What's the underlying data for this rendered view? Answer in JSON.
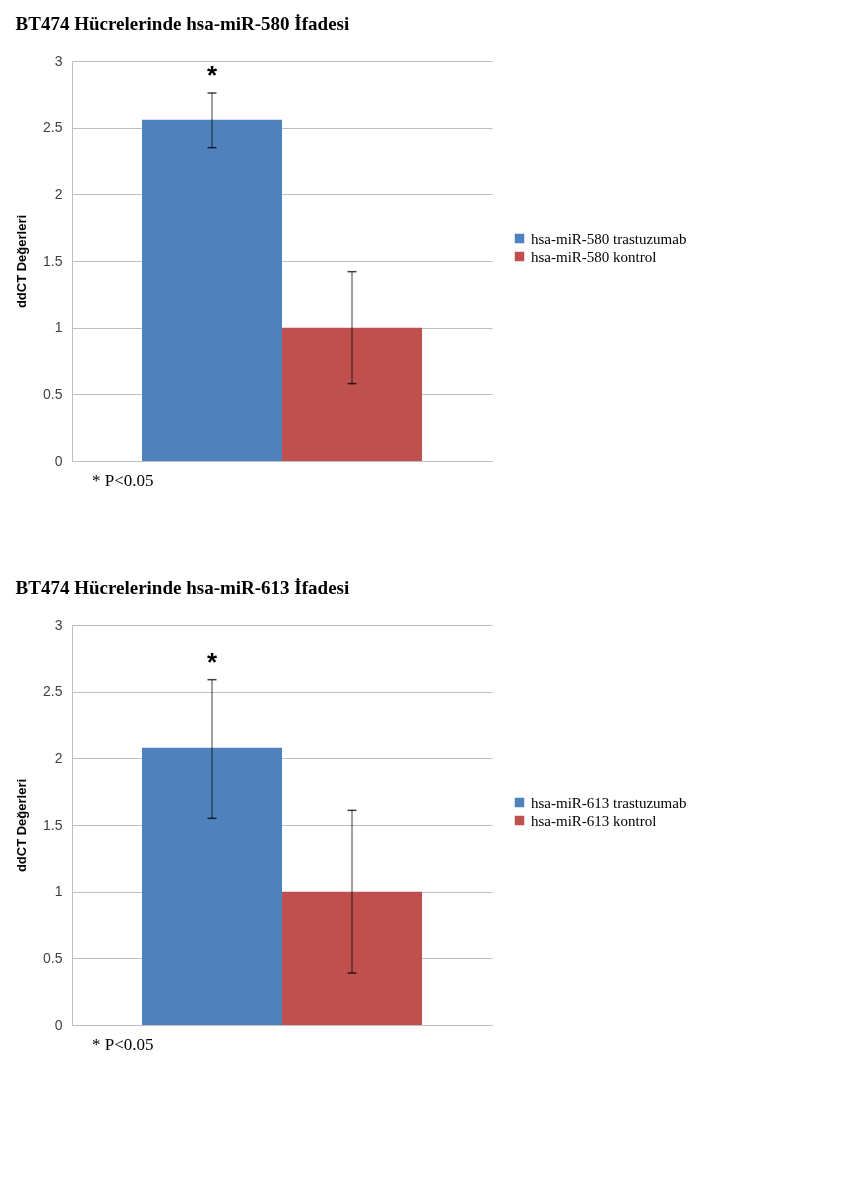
{
  "chart_data": [
    {
      "type": "bar",
      "title": "BT474 Hücrelerinde hsa-miR-580 İfadesi",
      "ylabel": "ddCT Değerleri",
      "categories": [
        null
      ],
      "series": [
        {
          "name": "hsa-miR-580 trastuzumab",
          "color": "#4f81bd",
          "values": [
            2.56
          ],
          "errors": [
            [
              2.35,
              2.76
            ]
          ]
        },
        {
          "name": "hsa-miR-580 kontrol",
          "color": "#c0504d",
          "values": [
            1.0
          ],
          "errors": [
            [
              0.58,
              1.42
            ]
          ]
        }
      ],
      "ylim": [
        0,
        3
      ],
      "yticks": [
        0,
        0.5,
        1,
        1.5,
        2,
        2.5,
        3
      ],
      "grid": "y",
      "legend": "right",
      "annotations": [
        "*",
        "* P<0.05"
      ]
    },
    {
      "type": "bar",
      "title": "BT474 Hücrelerinde hsa-miR-613 İfadesi",
      "ylabel": "ddCT Değerleri",
      "categories": [
        null
      ],
      "series": [
        {
          "name": "hsa-miR-613 trastuzumab",
          "color": "#4f81bd",
          "values": [
            2.08
          ],
          "errors": [
            [
              1.55,
              2.59
            ]
          ]
        },
        {
          "name": "hsa-miR-613 kontrol",
          "color": "#c0504d",
          "values": [
            1.0
          ],
          "errors": [
            [
              0.39,
              1.61
            ]
          ]
        }
      ],
      "ylim": [
        0,
        3
      ],
      "yticks": [
        0,
        0.5,
        1,
        1.5,
        2,
        2.5,
        3
      ],
      "grid": "y",
      "legend": "right",
      "annotations": [
        "*",
        "* P<0.05"
      ]
    }
  ]
}
